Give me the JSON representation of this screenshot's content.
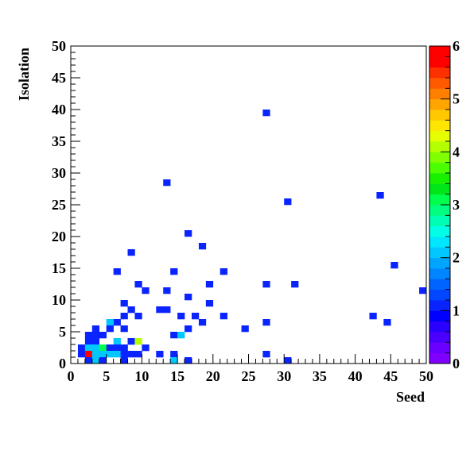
{
  "chart_data": {
    "type": "heatmap",
    "xlabel": "Seed",
    "ylabel": "Isolation",
    "xlim": [
      0,
      50
    ],
    "ylim": [
      0,
      50
    ],
    "bin_size": 1,
    "x_ticks": [
      0,
      5,
      10,
      15,
      20,
      25,
      30,
      35,
      40,
      45,
      50
    ],
    "y_ticks": [
      0,
      5,
      10,
      15,
      20,
      25,
      30,
      35,
      40,
      45,
      50
    ],
    "colorbar": {
      "min": 0,
      "max": 6,
      "ticks": [
        0,
        1,
        2,
        3,
        4,
        5,
        6
      ],
      "colors": [
        "#7f00ff",
        "#6a00ff",
        "#4b00ff",
        "#2a00ff",
        "#0000ff",
        "#0a24ff",
        "#0047ff",
        "#0065ff",
        "#0085ff",
        "#00a5ff",
        "#00c8ff",
        "#00e6ff",
        "#00ffe6",
        "#00ffb4",
        "#00ff80",
        "#00ff4c",
        "#00e619",
        "#19f000",
        "#4cff00",
        "#80ff00",
        "#b4ff00",
        "#e6ff00",
        "#ffe600",
        "#ffc800",
        "#ffa500",
        "#ff8000",
        "#ff5a00",
        "#ff3000",
        "#ff0000",
        "#ff0000"
      ]
    },
    "bins": [
      [
        27,
        39,
        1
      ],
      [
        13,
        28,
        1
      ],
      [
        30,
        25,
        1
      ],
      [
        43,
        26,
        1
      ],
      [
        16,
        20,
        1
      ],
      [
        18,
        18,
        1
      ],
      [
        8,
        17,
        1
      ],
      [
        45,
        15,
        1
      ],
      [
        6,
        14,
        1
      ],
      [
        14,
        14,
        1
      ],
      [
        21,
        14,
        1
      ],
      [
        9,
        12,
        1
      ],
      [
        19,
        12,
        1
      ],
      [
        27,
        12,
        1
      ],
      [
        31,
        12,
        1
      ],
      [
        10,
        11,
        1
      ],
      [
        13,
        11,
        1
      ],
      [
        49,
        11,
        1
      ],
      [
        16,
        10,
        1
      ],
      [
        7,
        9,
        1
      ],
      [
        19,
        9,
        1
      ],
      [
        8,
        8,
        1
      ],
      [
        12,
        8,
        1
      ],
      [
        13,
        8,
        1
      ],
      [
        7,
        7,
        1
      ],
      [
        9,
        7,
        1
      ],
      [
        15,
        7,
        1
      ],
      [
        17,
        7,
        1
      ],
      [
        21,
        7,
        1
      ],
      [
        42,
        7,
        1
      ],
      [
        6,
        6,
        1
      ],
      [
        18,
        6,
        1
      ],
      [
        27,
        6,
        1
      ],
      [
        44,
        6,
        1
      ],
      [
        5,
        6,
        2
      ],
      [
        3,
        5,
        1
      ],
      [
        5,
        5,
        1
      ],
      [
        7,
        5,
        1
      ],
      [
        16,
        5,
        1
      ],
      [
        24,
        5,
        1
      ],
      [
        2,
        4,
        1
      ],
      [
        3,
        4,
        1
      ],
      [
        4,
        4,
        1
      ],
      [
        14,
        4,
        1
      ],
      [
        15,
        4,
        2
      ],
      [
        2,
        3,
        1
      ],
      [
        3,
        3,
        1
      ],
      [
        6,
        3,
        2
      ],
      [
        8,
        3,
        1
      ],
      [
        9,
        3,
        4
      ],
      [
        1,
        2,
        1
      ],
      [
        2,
        2,
        2
      ],
      [
        3,
        2,
        2
      ],
      [
        4,
        2,
        3
      ],
      [
        5,
        2,
        1
      ],
      [
        6,
        2,
        1
      ],
      [
        7,
        2,
        1
      ],
      [
        10,
        2,
        1
      ],
      [
        1,
        1,
        1
      ],
      [
        2,
        1,
        6
      ],
      [
        3,
        1,
        2
      ],
      [
        4,
        1,
        2
      ],
      [
        5,
        1,
        2
      ],
      [
        6,
        1,
        2
      ],
      [
        7,
        1,
        1
      ],
      [
        8,
        1,
        1
      ],
      [
        9,
        1,
        1
      ],
      [
        12,
        1,
        1
      ],
      [
        14,
        1,
        1
      ],
      [
        27,
        1,
        1
      ],
      [
        2,
        0,
        1
      ],
      [
        3,
        0,
        2
      ],
      [
        4,
        0,
        1
      ],
      [
        7,
        0,
        1
      ],
      [
        14,
        0,
        2
      ],
      [
        16,
        0,
        1
      ],
      [
        30,
        0,
        1
      ]
    ]
  }
}
